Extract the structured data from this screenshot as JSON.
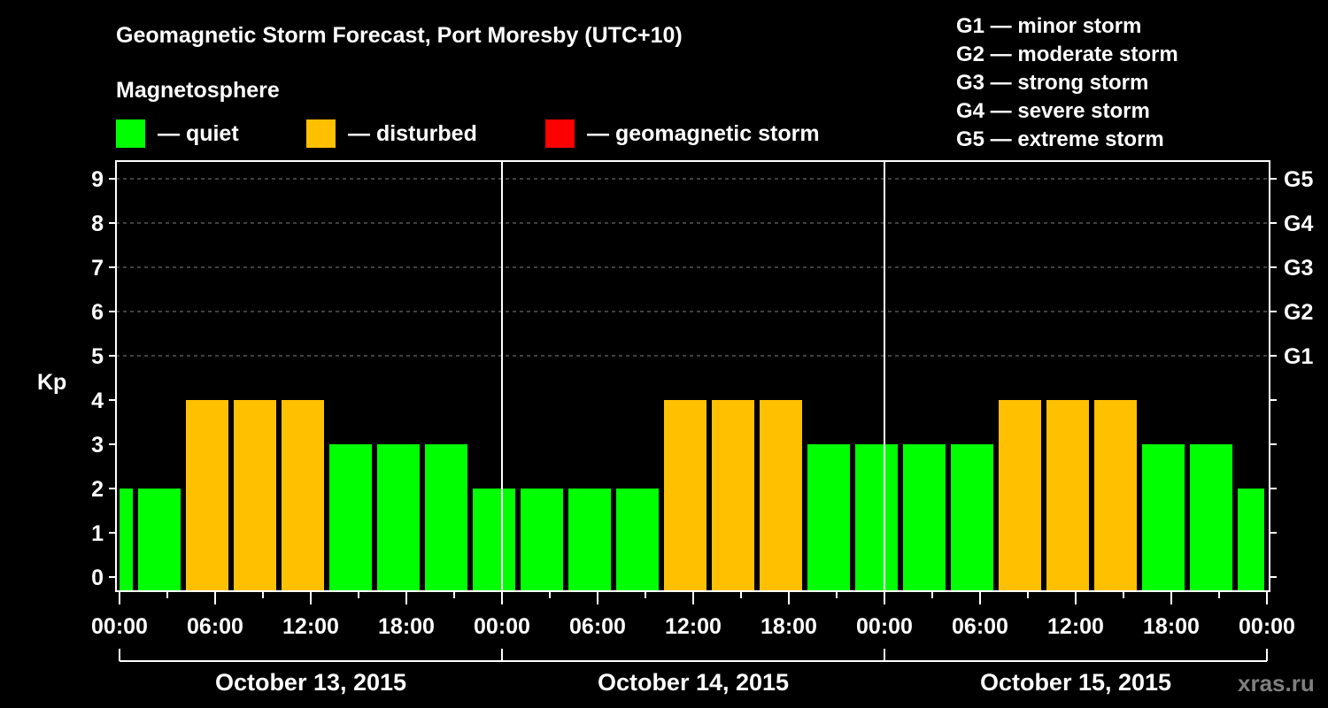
{
  "header": {
    "title": "Geomagnetic Storm Forecast, Port Moresby (UTC+10)",
    "subtitle": "Magnetosphere"
  },
  "legend": [
    {
      "label": "— quiet",
      "color": "#00ff00"
    },
    {
      "label": "— disturbed",
      "color": "#ffc000"
    },
    {
      "label": "— geomagnetic storm",
      "color": "#ff0000"
    }
  ],
  "storm_scale": [
    "G1 — minor storm",
    "G2 — moderate storm",
    "G3 — strong storm",
    "G4 — severe storm",
    "G5 — extreme storm"
  ],
  "watermark": "xras.ru",
  "colors": {
    "quiet": "#00ff00",
    "disturbed": "#ffc000",
    "storm": "#ff0000",
    "grid": "#808080",
    "axis": "#ffffff"
  },
  "chart_data": {
    "type": "bar",
    "title": "Geomagnetic Storm Forecast, Port Moresby (UTC+10)",
    "ylabel": "Kp",
    "xlabel": "",
    "ylim": [
      0,
      9
    ],
    "yticks": [
      0,
      1,
      2,
      3,
      4,
      5,
      6,
      7,
      8,
      9
    ],
    "right_ticks": [
      {
        "kp": 5,
        "label": "G1"
      },
      {
        "kp": 6,
        "label": "G2"
      },
      {
        "kp": 7,
        "label": "G3"
      },
      {
        "kp": 8,
        "label": "G4"
      },
      {
        "kp": 9,
        "label": "G5"
      }
    ],
    "grid": "dashed horizontal at Kp 5-9",
    "xtick_labels": [
      "00:00",
      "06:00",
      "12:00",
      "18:00",
      "00:00",
      "06:00",
      "12:00",
      "18:00",
      "00:00",
      "06:00",
      "12:00",
      "18:00",
      "00:00"
    ],
    "days": [
      "October 13, 2015",
      "October 14, 2015",
      "October 15, 2015"
    ],
    "bars": [
      {
        "start_h": 0,
        "end_h": 1,
        "kp": 2,
        "status": "quiet"
      },
      {
        "start_h": 1,
        "end_h": 4,
        "kp": 2,
        "status": "quiet"
      },
      {
        "start_h": 4,
        "end_h": 7,
        "kp": 4,
        "status": "disturbed"
      },
      {
        "start_h": 7,
        "end_h": 10,
        "kp": 4,
        "status": "disturbed"
      },
      {
        "start_h": 10,
        "end_h": 13,
        "kp": 4,
        "status": "disturbed"
      },
      {
        "start_h": 13,
        "end_h": 16,
        "kp": 3,
        "status": "quiet"
      },
      {
        "start_h": 16,
        "end_h": 19,
        "kp": 3,
        "status": "quiet"
      },
      {
        "start_h": 19,
        "end_h": 22,
        "kp": 3,
        "status": "quiet"
      },
      {
        "start_h": 22,
        "end_h": 25,
        "kp": 2,
        "status": "quiet"
      },
      {
        "start_h": 25,
        "end_h": 28,
        "kp": 2,
        "status": "quiet"
      },
      {
        "start_h": 28,
        "end_h": 31,
        "kp": 2,
        "status": "quiet"
      },
      {
        "start_h": 31,
        "end_h": 34,
        "kp": 2,
        "status": "quiet"
      },
      {
        "start_h": 34,
        "end_h": 37,
        "kp": 4,
        "status": "disturbed"
      },
      {
        "start_h": 37,
        "end_h": 40,
        "kp": 4,
        "status": "disturbed"
      },
      {
        "start_h": 40,
        "end_h": 43,
        "kp": 4,
        "status": "disturbed"
      },
      {
        "start_h": 43,
        "end_h": 46,
        "kp": 3,
        "status": "quiet"
      },
      {
        "start_h": 46,
        "end_h": 49,
        "kp": 3,
        "status": "quiet"
      },
      {
        "start_h": 49,
        "end_h": 52,
        "kp": 3,
        "status": "quiet"
      },
      {
        "start_h": 52,
        "end_h": 55,
        "kp": 3,
        "status": "quiet"
      },
      {
        "start_h": 55,
        "end_h": 58,
        "kp": 4,
        "status": "disturbed"
      },
      {
        "start_h": 58,
        "end_h": 61,
        "kp": 4,
        "status": "disturbed"
      },
      {
        "start_h": 61,
        "end_h": 64,
        "kp": 4,
        "status": "disturbed"
      },
      {
        "start_h": 64,
        "end_h": 67,
        "kp": 3,
        "status": "quiet"
      },
      {
        "start_h": 67,
        "end_h": 70,
        "kp": 3,
        "status": "quiet"
      },
      {
        "start_h": 70,
        "end_h": 72,
        "kp": 2,
        "status": "quiet"
      }
    ]
  }
}
